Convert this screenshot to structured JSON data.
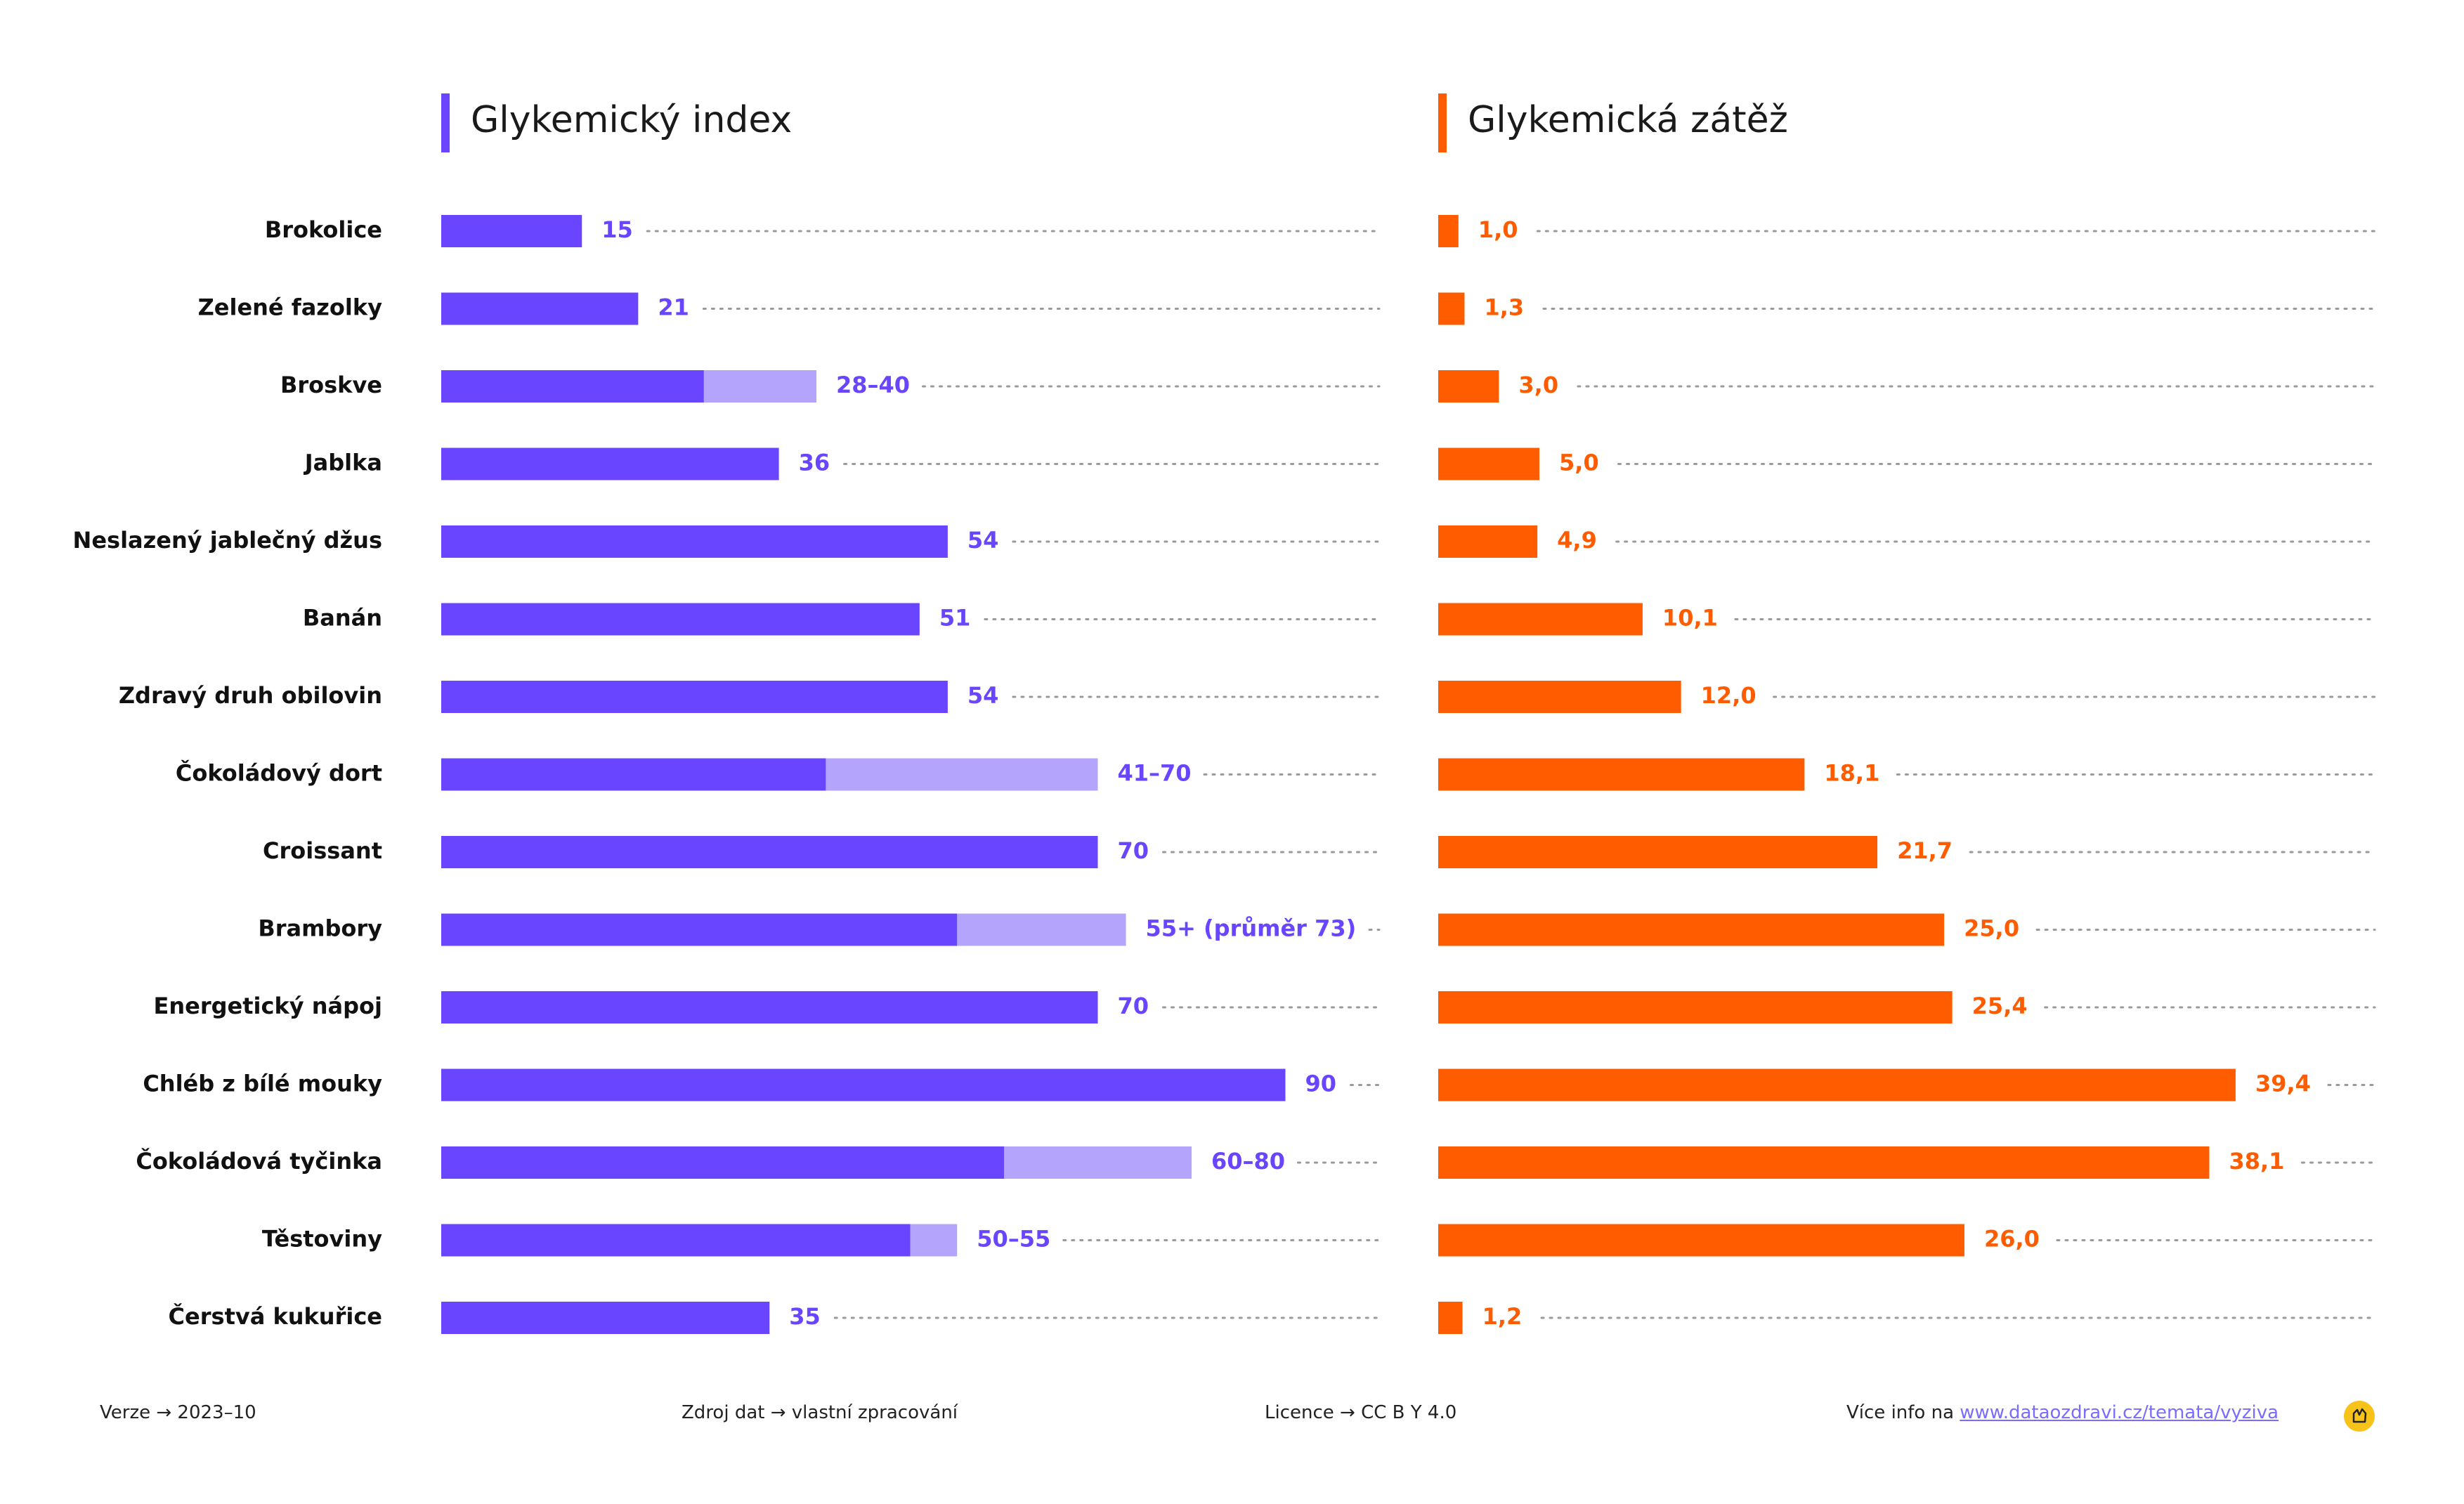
{
  "chart_data": [
    {
      "type": "bar",
      "orientation": "horizontal",
      "title": "Glykemický index",
      "categories": [
        "Brokolice",
        "Zelené fazolky",
        "Broskve",
        "Jablka",
        "Neslazený jablečný džus",
        "Banán",
        "Zdravý druh obilovin",
        "Čokoládový dort",
        "Croissant",
        "Brambory",
        "Energetický nápoj",
        "Chléb z bílé mouky",
        "Čokoládová tyčinka",
        "Těstoviny",
        "Čerstvá kukuřice"
      ],
      "values": [
        15,
        21,
        28,
        36,
        54,
        51,
        54,
        41,
        70,
        55,
        70,
        90,
        60,
        50,
        35
      ],
      "range_max": [
        null,
        null,
        40,
        null,
        null,
        null,
        null,
        70,
        null,
        73,
        null,
        null,
        80,
        55,
        null
      ],
      "labels": [
        "15",
        "21",
        "28–40",
        "36",
        "54",
        "51",
        "54",
        "41–70",
        "70",
        "55+ (průměr 73)",
        "70",
        "90",
        "60–80",
        "50–55",
        "35"
      ],
      "xlim": [
        0,
        100
      ],
      "colors": {
        "bar": "#6a45ff",
        "range": "#b4a4fb",
        "label": "#6a45ff",
        "accent": "#6a45ff"
      }
    },
    {
      "type": "bar",
      "orientation": "horizontal",
      "title": "Glykemická zátěž",
      "categories": [
        "Brokolice",
        "Zelené fazolky",
        "Broskve",
        "Jablka",
        "Neslazený jablečný džus",
        "Banán",
        "Zdravý druh obilovin",
        "Čokoládový dort",
        "Croissant",
        "Brambory",
        "Energetický nápoj",
        "Chléb z bílé mouky",
        "Čokoládová tyčinka",
        "Těstoviny",
        "Čerstvá kukuřice"
      ],
      "values": [
        1.0,
        1.3,
        3.0,
        5.0,
        4.9,
        10.1,
        12.0,
        18.1,
        21.7,
        25.0,
        25.4,
        39.4,
        38.1,
        26.0,
        1.2
      ],
      "labels": [
        "1,0",
        "1,3",
        "3,0",
        "5,0",
        "4,9",
        "10,1",
        "12,0",
        "18,1",
        "21,7",
        "25,0",
        "25,4",
        "39,4",
        "38,1",
        "26,0",
        "1,2"
      ],
      "xlim": [
        0,
        42.7
      ],
      "colors": {
        "bar": "#ff5c00",
        "label": "#ff5c00",
        "accent": "#ff5c00"
      }
    }
  ],
  "footer": {
    "version": "Verze  →  2023–10",
    "source": "Zdroj dat  →  vlastní zpracování",
    "license": "Licence  →  CC B Y 4.0",
    "more_info_prefix": "Více info na ",
    "more_info_link": "www.dataozdravi.cz/temata/vyziva"
  }
}
